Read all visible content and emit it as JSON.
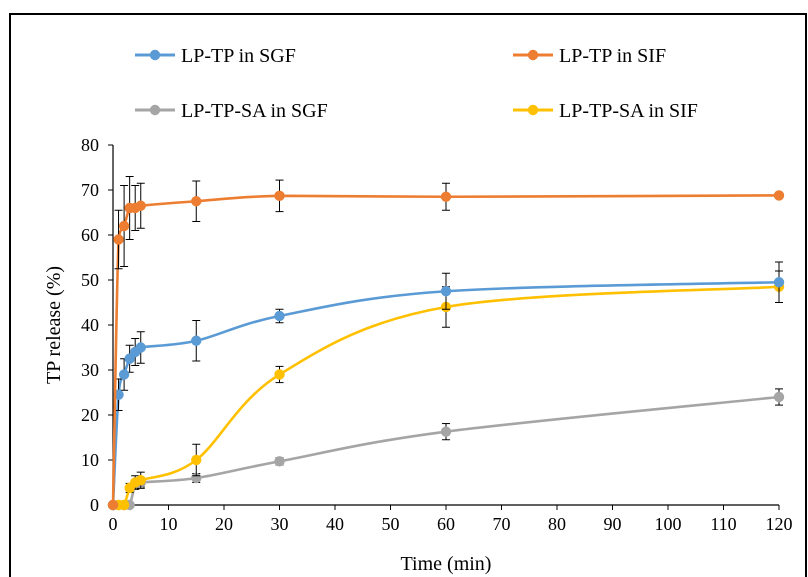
{
  "chart_data": {
    "type": "line",
    "title": "",
    "xlabel": "Time (min)",
    "ylabel": "TP release (%)",
    "xlim": [
      0,
      120
    ],
    "ylim": [
      0,
      80
    ],
    "xticks": [
      0,
      10,
      20,
      30,
      40,
      50,
      60,
      70,
      80,
      90,
      100,
      110,
      120
    ],
    "yticks": [
      0,
      10,
      20,
      30,
      40,
      50,
      60,
      70,
      80
    ],
    "grid": false,
    "legend_position": "top",
    "series": [
      {
        "name": "LP-TP in SGF",
        "color": "#5B9BD5",
        "x": [
          0,
          1,
          2,
          3,
          4,
          5,
          15,
          30,
          60,
          120
        ],
        "y": [
          0,
          24.5,
          29,
          32.5,
          34,
          35,
          36.5,
          42,
          47.5,
          49.5
        ],
        "err": [
          0,
          3.5,
          3.5,
          3,
          3,
          3.5,
          4.5,
          1.5,
          4,
          4.5
        ]
      },
      {
        "name": "LP-TP in SIF",
        "color": "#ED7D31",
        "x": [
          0,
          1,
          2,
          3,
          4,
          5,
          15,
          30,
          60,
          120
        ],
        "y": [
          0,
          59,
          62,
          66,
          66,
          66.5,
          67.5,
          68.7,
          68.5,
          68.8
        ],
        "err": [
          0,
          6.5,
          9,
          7,
          5,
          5,
          4.5,
          3.5,
          3,
          0.5
        ]
      },
      {
        "name": "LP-TP-SA in SGF",
        "color": "#A5A5A5",
        "x": [
          0,
          1,
          2,
          3,
          4,
          5,
          15,
          30,
          60,
          120
        ],
        "y": [
          0,
          0,
          0,
          0,
          4.5,
          5,
          6,
          9.7,
          16.3,
          24
        ],
        "err": [
          0,
          0,
          0,
          0,
          1,
          1,
          1,
          0.8,
          1.8,
          1.8
        ]
      },
      {
        "name": "LP-TP-SA in SIF",
        "color": "#FFC000",
        "x": [
          0,
          1,
          2,
          3,
          4,
          5,
          15,
          30,
          60,
          120
        ],
        "y": [
          0,
          0,
          0,
          3.8,
          5,
          5.5,
          10,
          29,
          44,
          48.5
        ],
        "err": [
          0,
          0,
          0,
          1,
          1.5,
          1.8,
          3.5,
          1.8,
          4.5,
          3.5
        ]
      }
    ]
  }
}
